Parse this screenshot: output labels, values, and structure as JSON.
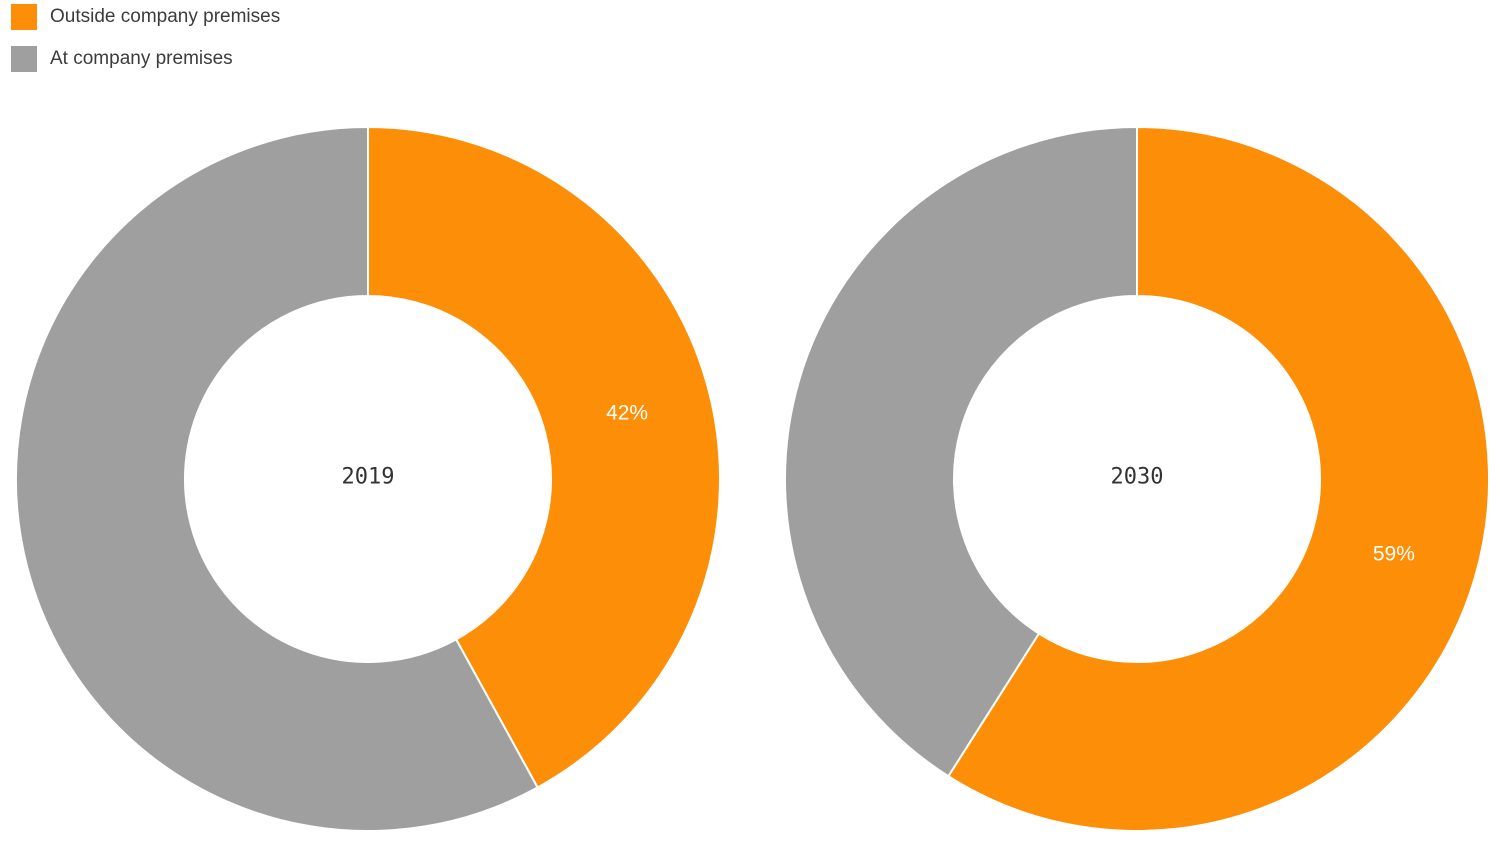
{
  "colors": {
    "orange": "#FC8E08",
    "gray": "#9F9F9F",
    "text": "#3c3c3c",
    "data_label_text": "#FFFFFF",
    "separator": "#FFFFFF"
  },
  "legend": {
    "items": [
      {
        "label": "Outside company premises",
        "color": "#FC8E08"
      },
      {
        "label": "At company premises",
        "color": "#9F9F9F"
      }
    ]
  },
  "chart_data": [
    {
      "type": "pie",
      "subtype": "donut",
      "center_label": "2019",
      "start_angle_deg": 0,
      "direction": "clockwise",
      "inner_radius_ratio": 0.52,
      "slices": [
        {
          "label": "Outside company premises",
          "value": 42,
          "color": "#FC8E08",
          "data_label": "42%"
        },
        {
          "label": "At company premises",
          "value": 58,
          "color": "#9F9F9F",
          "data_label": ""
        }
      ]
    },
    {
      "type": "pie",
      "subtype": "donut",
      "center_label": "2030",
      "start_angle_deg": 0,
      "direction": "clockwise",
      "inner_radius_ratio": 0.52,
      "slices": [
        {
          "label": "Outside company premises",
          "value": 59,
          "color": "#FC8E08",
          "data_label": "59%"
        },
        {
          "label": "At company premises",
          "value": 41,
          "color": "#9F9F9F",
          "data_label": ""
        }
      ]
    }
  ]
}
